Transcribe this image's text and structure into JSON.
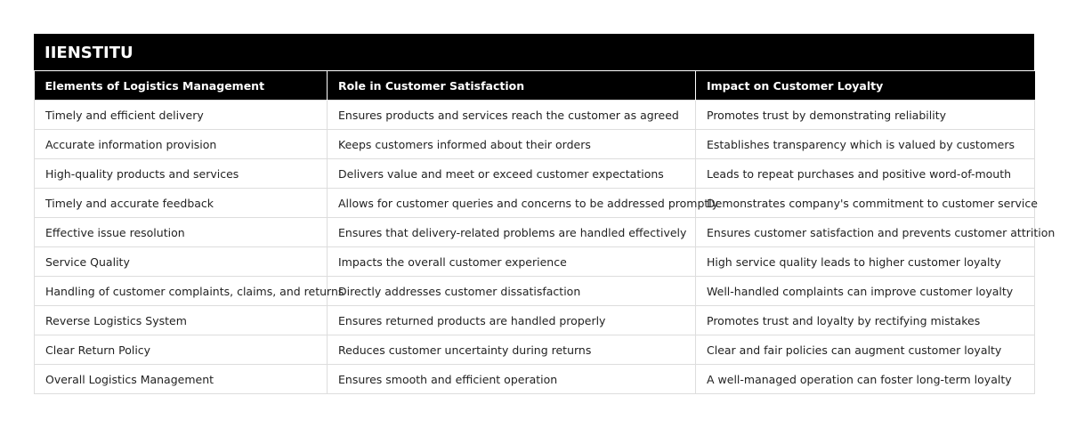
{
  "header": {
    "title": "IIENSTITU"
  },
  "table": {
    "columns": [
      "Elements of Logistics Management",
      "Role in Customer Satisfaction",
      "Impact on Customer Loyalty"
    ],
    "rows": [
      [
        "Timely and efficient delivery",
        "Ensures products and services reach the customer as agreed",
        "Promotes trust by demonstrating reliability"
      ],
      [
        "Accurate information provision",
        "Keeps customers informed about their orders",
        "Establishes transparency which is valued by customers"
      ],
      [
        "High-quality products and services",
        "Delivers value and meet or exceed customer expectations",
        "Leads to repeat purchases and positive word-of-mouth"
      ],
      [
        "Timely and accurate feedback",
        "Allows for customer queries and concerns to be addressed promptly",
        "Demonstrates company's commitment to customer service"
      ],
      [
        "Effective issue resolution",
        "Ensures that delivery-related problems are handled effectively",
        "Ensures customer satisfaction and prevents customer attrition"
      ],
      [
        "Service Quality",
        "Impacts the overall customer experience",
        "High service quality leads to higher customer loyalty"
      ],
      [
        "Handling of customer complaints, claims, and returns",
        "Directly addresses customer dissatisfaction",
        "Well-handled complaints can improve customer loyalty"
      ],
      [
        "Reverse Logistics System",
        "Ensures returned products are handled properly",
        "Promotes trust and loyalty by rectifying mistakes"
      ],
      [
        "Clear Return Policy",
        "Reduces customer uncertainty during returns",
        "Clear and fair policies can augment customer loyalty"
      ],
      [
        "Overall Logistics Management",
        "Ensures smooth and efficient operation",
        "A well-managed operation can foster long-term loyalty"
      ]
    ]
  }
}
